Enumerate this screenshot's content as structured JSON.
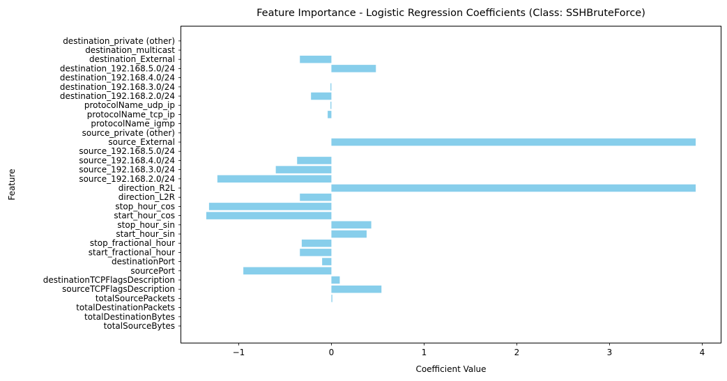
{
  "chart_data": {
    "type": "bar",
    "orientation": "horizontal",
    "title": "Feature Importance - Logistic Regression Coefficients (Class: SSHBruteForce)",
    "xlabel": "Coefficient Value",
    "ylabel": "Feature",
    "xlim": [
      -1.62,
      4.2
    ],
    "xticks": [
      -1,
      0,
      1,
      2,
      3,
      4
    ],
    "grid": false,
    "bar_color": "#87ceeb",
    "categories": [
      "totalSourceBytes",
      "totalDestinationBytes",
      "totalDestinationPackets",
      "totalSourcePackets",
      "sourceTCPFlagsDescription",
      "destinationTCPFlagsDescription",
      "sourcePort",
      "destinationPort",
      "start_fractional_hour",
      "stop_fractional_hour",
      "start_hour_sin",
      "stop_hour_sin",
      "start_hour_cos",
      "stop_hour_cos",
      "direction_L2R",
      "direction_R2L",
      "source_192.168.2.0/24",
      "source_192.168.3.0/24",
      "source_192.168.4.0/24",
      "source_192.168.5.0/24",
      "source_External",
      "source_private (other)",
      "protocolName_igmp",
      "protocolName_tcp_ip",
      "protocolName_udp_ip",
      "destination_192.168.2.0/24",
      "destination_192.168.3.0/24",
      "destination_192.168.4.0/24",
      "destination_192.168.5.0/24",
      "destination_External",
      "destination_multicast",
      "destination_private (other)"
    ],
    "values": [
      0.0,
      0.0,
      0.0,
      0.01,
      0.54,
      0.09,
      -0.95,
      -0.1,
      -0.34,
      -0.32,
      0.38,
      0.43,
      -1.35,
      -1.32,
      -0.34,
      3.93,
      -1.23,
      -0.6,
      -0.37,
      0.0,
      3.93,
      0.0,
      0.0,
      -0.04,
      -0.01,
      -0.22,
      -0.01,
      0.0,
      0.48,
      -0.34,
      0.0,
      0.0
    ]
  }
}
